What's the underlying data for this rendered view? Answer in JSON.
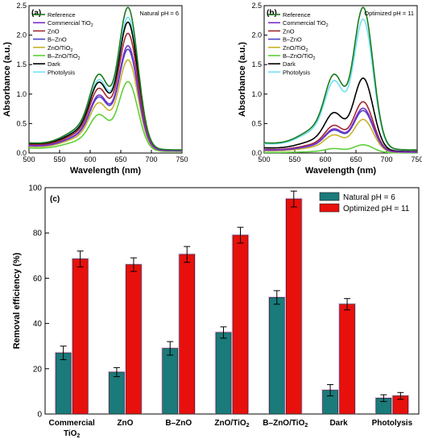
{
  "colors": {
    "Reference": "#1b7a1b",
    "Commercial TiO2": "#7b2fc9",
    "ZnO": "#a0292d",
    "B–ZnO": "#4b44c6",
    "ZnO/TiO2": "#c8b22c",
    "B–ZnO/TiO2": "#5fcf3a",
    "Dark": "#000000",
    "Photolysis": "#6fe0f4",
    "natural": "#1b7a7a",
    "optimized": "#e8100c"
  },
  "chart_data": [
    {
      "type": "line",
      "panel_label": "(a)",
      "annotation": "Natural pH = 6",
      "xlabel": "Wavelength (nm)",
      "ylabel": "Absorbance (a.u.)",
      "xlim": [
        500,
        750
      ],
      "ylim": [
        0,
        2.5
      ],
      "xticks": [
        500,
        550,
        600,
        650,
        700,
        750
      ],
      "yticks": [
        0.0,
        0.5,
        1.0,
        1.5,
        2.0,
        2.5
      ],
      "legend_position": "top-left",
      "series": [
        {
          "name": "Reference",
          "peak": 2.47
        },
        {
          "name": "Commercial TiO2",
          "peak": 1.82
        },
        {
          "name": "ZnO",
          "peak": 2.03
        },
        {
          "name": "B–ZnO",
          "peak": 1.76
        },
        {
          "name": "ZnO/TiO2",
          "peak": 1.58
        },
        {
          "name": "B–ZnO/TiO2",
          "peak": 1.21
        },
        {
          "name": "Dark",
          "peak": 2.22
        },
        {
          "name": "Photolysis",
          "peak": 2.3
        }
      ]
    },
    {
      "type": "line",
      "panel_label": "(b)",
      "annotation": "Optimized pH = 11",
      "xlabel": "Wavelength (nm)",
      "ylabel": "Absorbance (a.u.)",
      "xlim": [
        500,
        750
      ],
      "ylim": [
        0,
        2.5
      ],
      "xticks": [
        500,
        550,
        600,
        650,
        700,
        750
      ],
      "yticks": [
        0.0,
        0.5,
        1.0,
        1.5,
        2.0,
        2.5
      ],
      "legend_position": "top-left",
      "series": [
        {
          "name": "Reference",
          "peak": 2.47
        },
        {
          "name": "Commercial TiO2",
          "peak": 0.76
        },
        {
          "name": "ZnO",
          "peak": 0.87
        },
        {
          "name": "B–ZnO",
          "peak": 0.72
        },
        {
          "name": "ZnO/TiO2",
          "peak": 0.57
        },
        {
          "name": "B–ZnO/TiO2",
          "peak": 0.14
        },
        {
          "name": "Dark",
          "peak": 1.27
        },
        {
          "name": "Photolysis",
          "peak": 2.27
        }
      ]
    },
    {
      "type": "bar",
      "panel_label": "(c)",
      "ylabel": "Removal efficiency (%)",
      "ylim": [
        0,
        100
      ],
      "yticks": [
        0,
        20,
        40,
        60,
        80,
        100
      ],
      "categories": [
        "Commercial TiO2",
        "ZnO",
        "B–ZnO",
        "ZnO/TiO2",
        "B–ZnO/TiO2",
        "Dark",
        "Photolysis"
      ],
      "legend_position": "top-right",
      "series": [
        {
          "name": "Natural pH = 6",
          "values": [
            27,
            18.5,
            29,
            36,
            51.5,
            10.5,
            7
          ],
          "errors": [
            3,
            2,
            3,
            2.5,
            3,
            2.5,
            1.5
          ]
        },
        {
          "name": "Optimized pH = 11",
          "values": [
            68.5,
            66,
            70.5,
            79,
            95,
            48.5,
            8
          ],
          "errors": [
            3.5,
            3,
            3.5,
            3.5,
            3.5,
            2.5,
            1.5
          ]
        }
      ]
    }
  ]
}
